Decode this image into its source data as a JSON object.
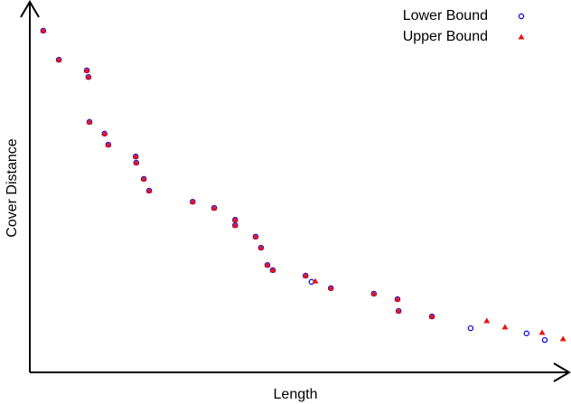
{
  "chart_data": {
    "type": "scatter",
    "xlabel": "Length",
    "ylabel": "Cover Distance",
    "xlim": [
      0,
      100
    ],
    "ylim": [
      0,
      100
    ],
    "legend": "upper right",
    "series": [
      {
        "name": "Lower Bound",
        "color": "#0000dd",
        "marker": "circle",
        "x": [
          2.5,
          5.4,
          10.6,
          10.9,
          11.1,
          13.9,
          14.6,
          19.7,
          19.8,
          21.2,
          22.2,
          30.3,
          34.3,
          38.2,
          38.2,
          42.0,
          43.0,
          44.2,
          45.2,
          51.3,
          52.4,
          56.0,
          64.0,
          68.4,
          68.6,
          74.8,
          82.0,
          92.4,
          95.8
        ],
        "values": [
          92.9,
          85.0,
          82.1,
          80.3,
          68.1,
          64.9,
          61.9,
          58.7,
          57.0,
          52.6,
          49.4,
          46.4,
          44.7,
          41.5,
          40.0,
          36.9,
          33.9,
          29.2,
          27.8,
          26.3,
          24.6,
          22.9,
          21.4,
          19.9,
          16.7,
          15.2,
          12.0,
          10.6,
          8.8
        ]
      },
      {
        "name": "Upper Bound",
        "color": "#ee1111",
        "marker": "triangle",
        "x": [
          2.5,
          5.4,
          10.6,
          10.9,
          11.1,
          13.9,
          14.6,
          19.7,
          19.8,
          21.2,
          22.2,
          30.3,
          34.3,
          38.2,
          38.2,
          42.0,
          43.0,
          44.2,
          45.2,
          51.3,
          53.1,
          56.0,
          64.0,
          68.4,
          68.6,
          74.8,
          85.0,
          88.4,
          95.3,
          99.2
        ],
        "values": [
          92.9,
          85.0,
          82.1,
          80.3,
          68.1,
          64.9,
          61.9,
          58.7,
          57.0,
          52.6,
          49.4,
          46.4,
          44.7,
          41.5,
          40.0,
          36.9,
          33.9,
          29.2,
          27.8,
          26.3,
          24.8,
          22.9,
          21.4,
          19.9,
          16.7,
          15.2,
          14.0,
          12.3,
          10.8,
          9.1
        ]
      }
    ]
  }
}
